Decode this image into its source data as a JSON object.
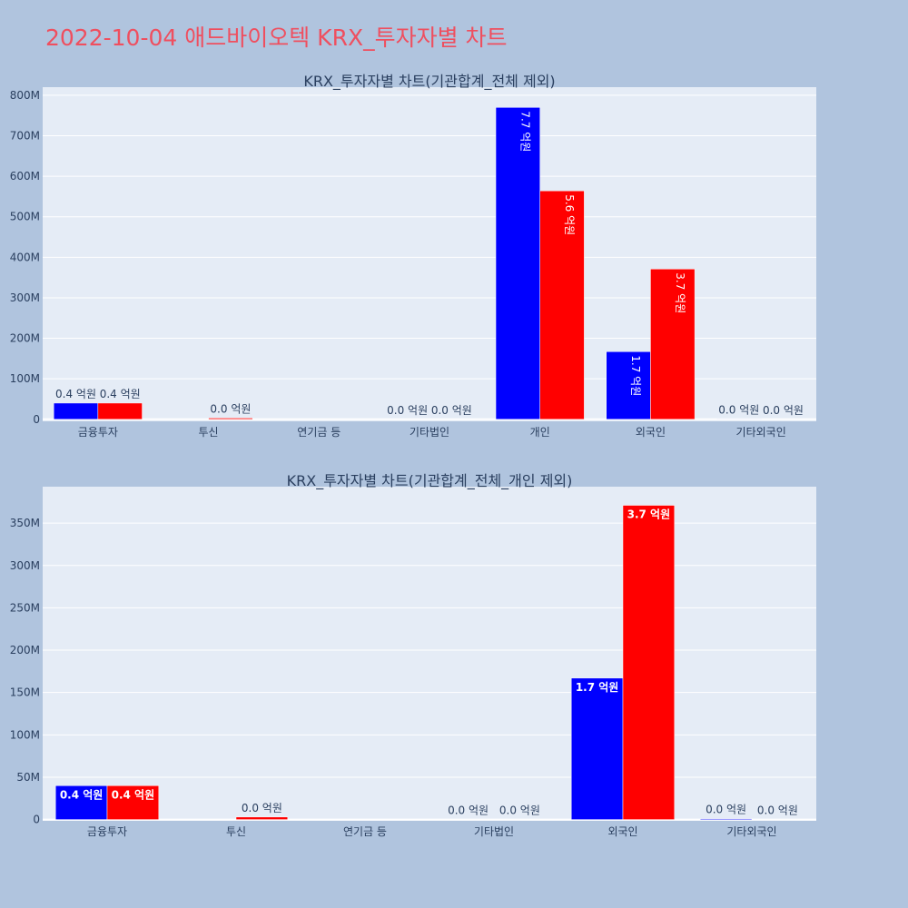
{
  "page_title": "2022-10-04 애드바이오텍 KRX_투자자별 차트",
  "colors": {
    "series_a": "#0000ff",
    "series_b": "#ff0000",
    "plot_bg": "#e5ecf6",
    "page_bg": "#b0c4de",
    "title": "#ef4f5f"
  },
  "chart_data": [
    {
      "type": "bar",
      "title": "KRX_투자자별 차트(기관합계_전체 제외)",
      "categories": [
        "금융투자",
        "투신",
        "연기금 등",
        "기타법인",
        "개인",
        "외국인",
        "기타외국인"
      ],
      "series": [
        {
          "values": [
            40000000,
            0,
            0,
            0,
            770000000,
            167000000,
            1000000
          ],
          "labels": [
            "0.4 억원",
            "",
            "",
            "0.0 억원",
            "7.7 억원",
            "1.7 억원",
            "0.0 억원"
          ]
        },
        {
          "values": [
            40000000,
            3000000,
            0,
            0,
            564000000,
            371000000,
            0
          ],
          "labels": [
            "0.4 억원",
            "0.0 억원",
            "",
            "0.0 억원",
            "5.6 억원",
            "3.7 억원",
            "0.0 억원"
          ]
        }
      ],
      "yticks": [
        0,
        100000000,
        200000000,
        300000000,
        400000000,
        500000000,
        600000000,
        700000000,
        800000000
      ],
      "ytick_labels": [
        "0",
        "100M",
        "200M",
        "300M",
        "400M",
        "500M",
        "600M",
        "700M",
        "800M"
      ],
      "ylim": [
        -5000000,
        820000000
      ],
      "grid": true
    },
    {
      "type": "bar",
      "title": "KRX_투자자별 차트(기관합계_전체_개인 제외)",
      "categories": [
        "금융투자",
        "투신",
        "연기금 등",
        "기타법인",
        "외국인",
        "기타외국인"
      ],
      "series": [
        {
          "values": [
            40000000,
            0,
            0,
            0,
            167000000,
            1000000
          ],
          "labels": [
            "0.4 억원",
            "",
            "",
            "0.0 억원",
            "1.7 억원",
            "0.0 억원"
          ]
        },
        {
          "values": [
            40000000,
            3000000,
            0,
            0,
            371000000,
            0
          ],
          "labels": [
            "0.4 억원",
            "0.0 억원",
            "",
            "0.0 억원",
            "3.7 억원",
            "0.0 억원"
          ]
        }
      ],
      "yticks": [
        0,
        50000000,
        100000000,
        150000000,
        200000000,
        250000000,
        300000000,
        350000000
      ],
      "ytick_labels": [
        "0",
        "50M",
        "100M",
        "150M",
        "200M",
        "250M",
        "300M",
        "350M"
      ],
      "ylim": [
        -1500000,
        393000000
      ],
      "grid": true
    }
  ]
}
